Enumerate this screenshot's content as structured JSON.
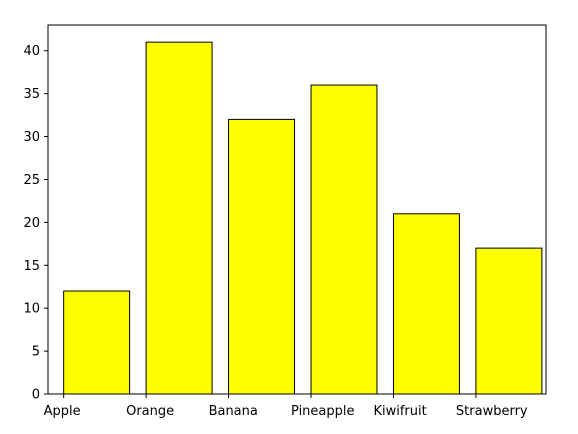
{
  "chart_data": {
    "type": "bar",
    "categories": [
      "Apple",
      "Orange",
      "Banana",
      "Pineapple",
      "Kiwifruit",
      "Strawberry"
    ],
    "values": [
      12,
      41,
      32,
      36,
      21,
      17
    ],
    "title": "",
    "xlabel": "",
    "ylabel": "",
    "ylim": [
      0,
      43
    ],
    "yticks": [
      0,
      5,
      10,
      15,
      20,
      25,
      30,
      35,
      40
    ],
    "grid": false,
    "legend": "none",
    "colors": {
      "bar_fill": "#ffff00",
      "bar_edge": "#000000",
      "axis": "#000000"
    }
  }
}
